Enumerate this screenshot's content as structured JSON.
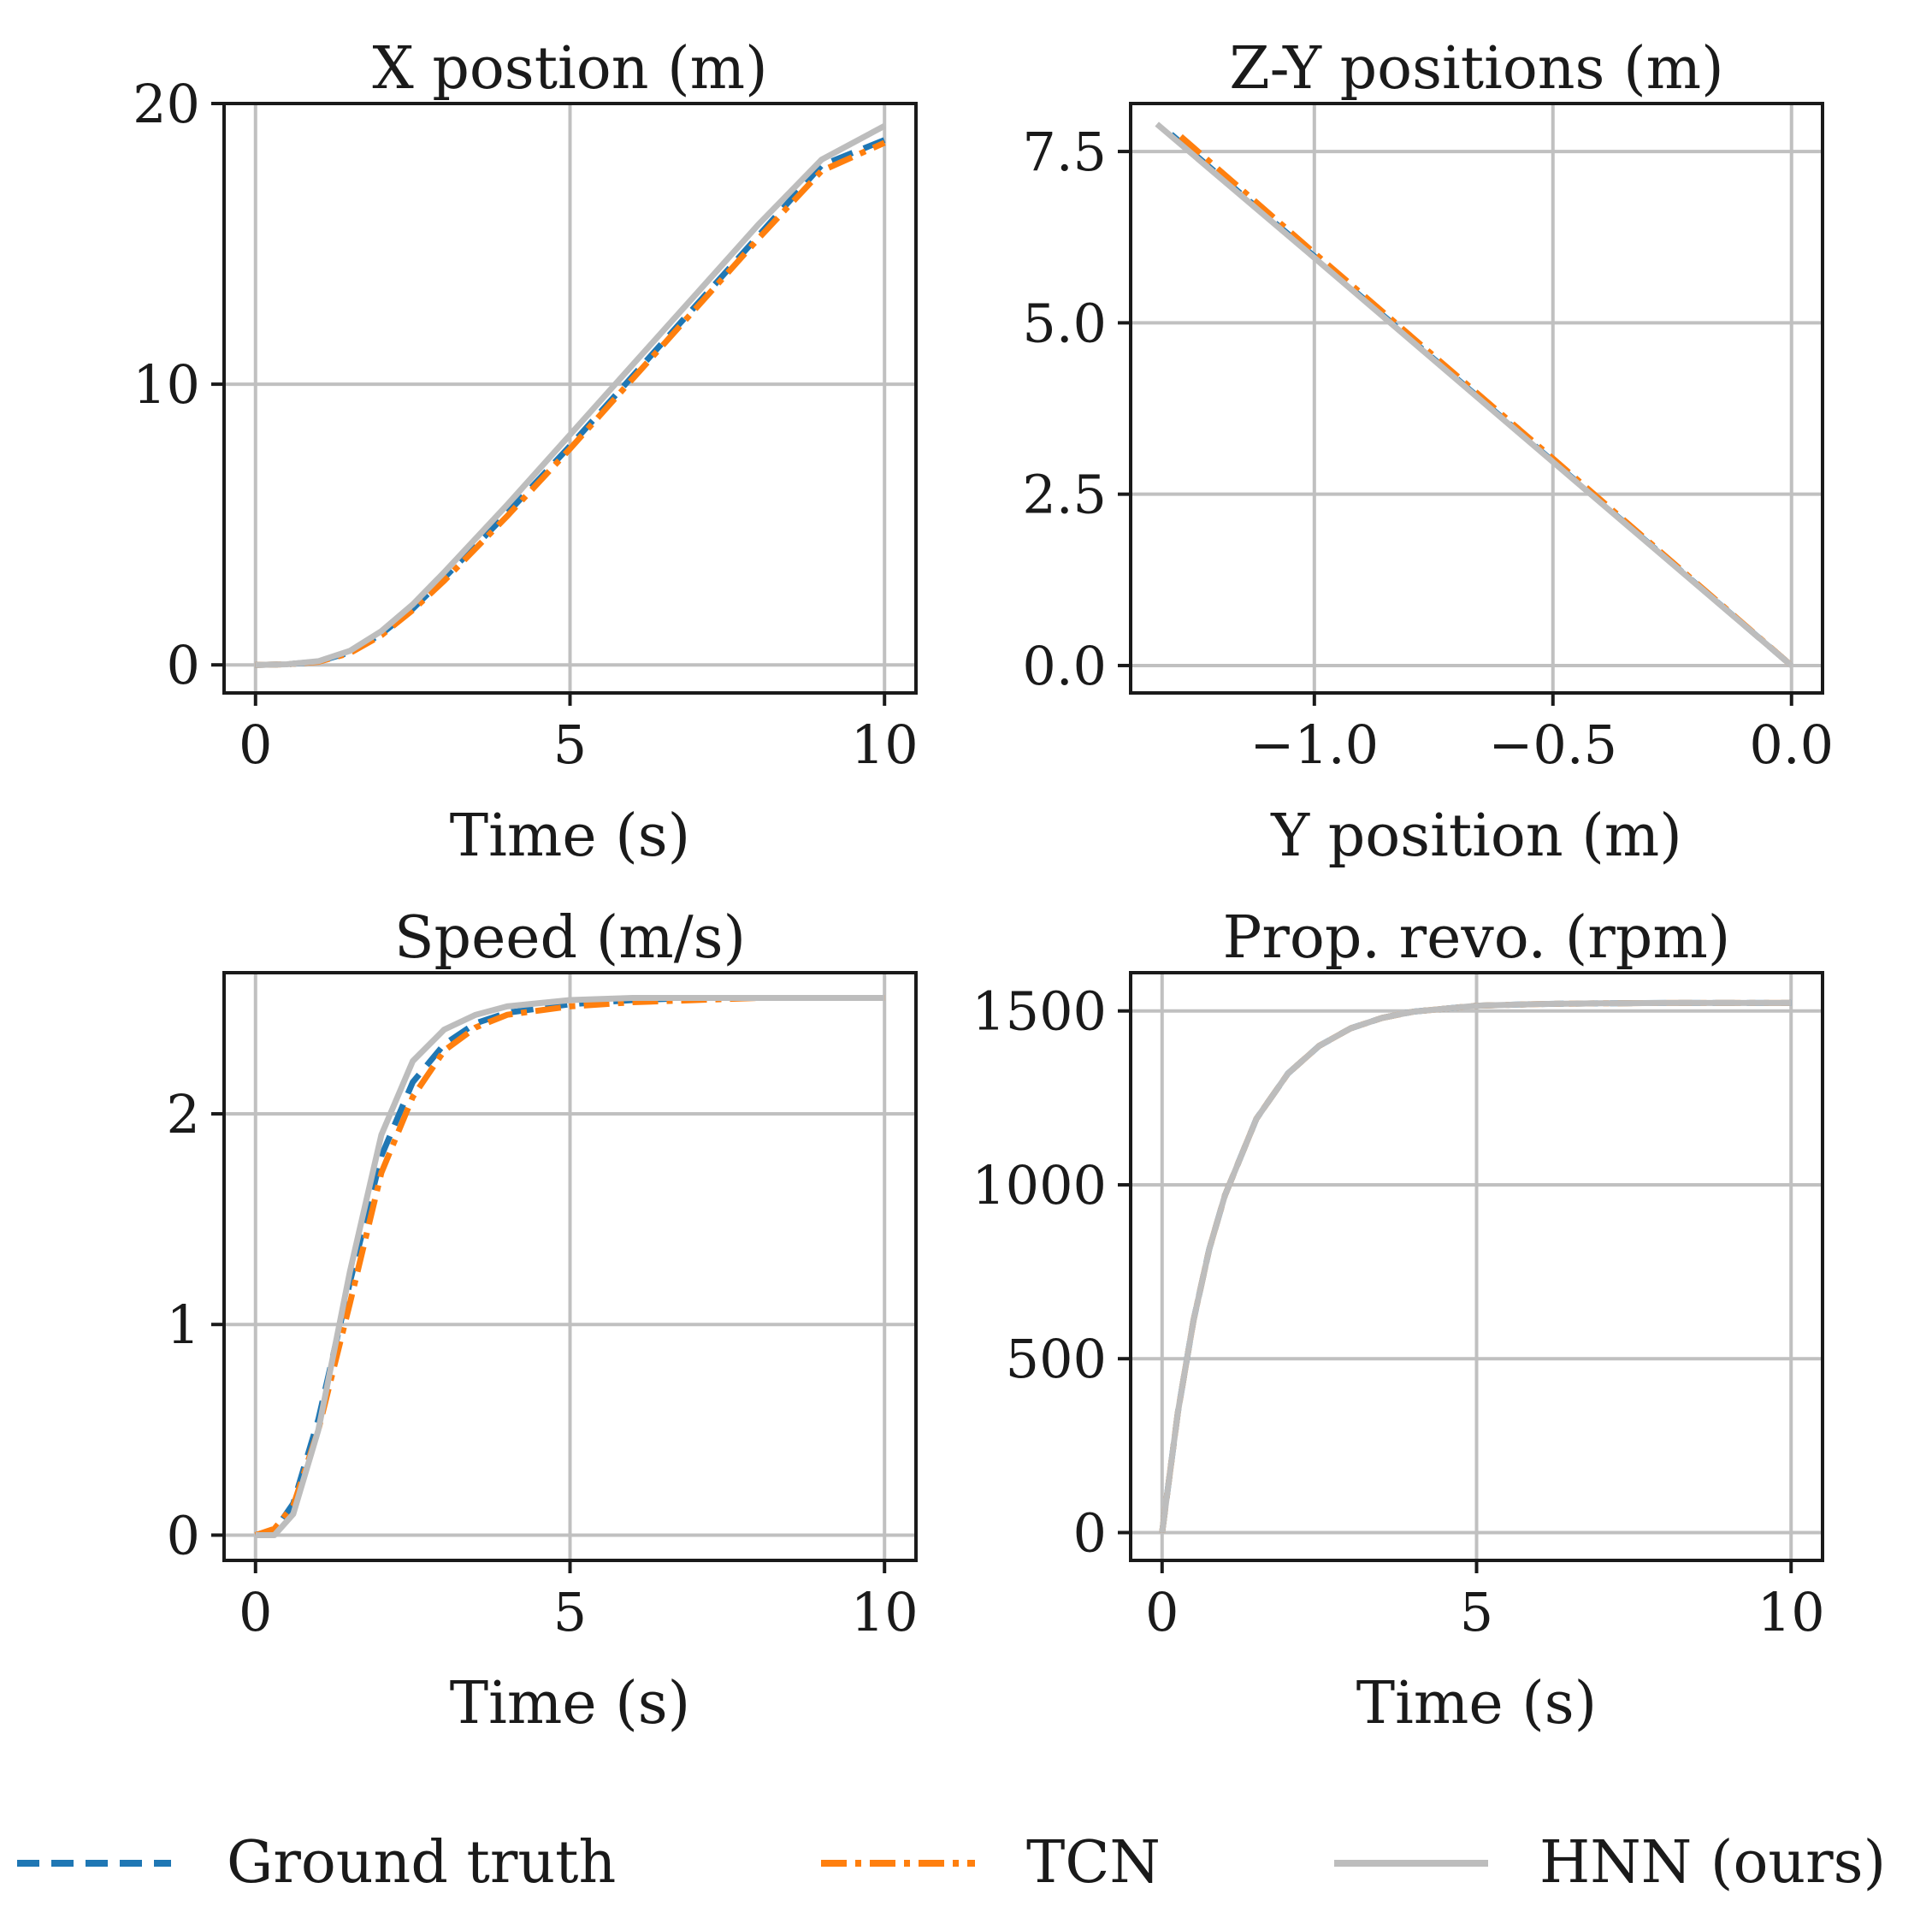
{
  "colors": {
    "ground_truth": "#1f77b4",
    "tcn": "#ff7f0e",
    "hnn": "#bdbdbd",
    "grid": "#c0c0c0",
    "axis": "#1a1a1a"
  },
  "legend": {
    "entries": [
      {
        "key": "ground_truth",
        "label": "Ground truth",
        "style": "dashed"
      },
      {
        "key": "tcn",
        "label": "TCN",
        "style": "dashdot"
      },
      {
        "key": "hnn",
        "label": "HNN (ours)",
        "style": "solid"
      }
    ]
  },
  "chart_data": [
    {
      "type": "line",
      "title": "X postion (m)",
      "xlabel": "Time (s)",
      "ylabel": "",
      "xlim": [
        -0.5,
        10.5
      ],
      "ylim": [
        -1,
        20
      ],
      "xticks": [
        0,
        5,
        10
      ],
      "xtick_labels": [
        "0",
        "5",
        "10"
      ],
      "yticks": [
        0,
        10,
        20
      ],
      "ytick_labels": [
        "0",
        "10",
        "20"
      ],
      "grid": true,
      "series": [
        {
          "name": "Ground truth",
          "key": "ground_truth",
          "x": [
            0,
            0.5,
            1,
            1.5,
            2,
            2.5,
            3,
            4,
            5,
            6,
            7,
            8,
            9,
            10
          ],
          "y": [
            0,
            0.02,
            0.12,
            0.45,
            1.1,
            2.0,
            3.1,
            5.4,
            7.8,
            10.3,
            12.8,
            15.3,
            17.8,
            18.7
          ]
        },
        {
          "name": "TCN",
          "key": "tcn",
          "x": [
            0,
            0.5,
            1,
            1.5,
            2,
            2.5,
            3,
            4,
            5,
            6,
            7,
            8,
            9,
            10
          ],
          "y": [
            0,
            0.02,
            0.11,
            0.42,
            1.05,
            1.95,
            3.0,
            5.3,
            7.7,
            10.2,
            12.7,
            15.2,
            17.6,
            18.6
          ]
        },
        {
          "name": "HNN (ours)",
          "key": "hnn",
          "x": [
            0,
            0.5,
            1,
            1.5,
            2,
            2.5,
            3,
            4,
            5,
            6,
            7,
            8,
            9,
            10
          ],
          "y": [
            0,
            0.02,
            0.13,
            0.5,
            1.2,
            2.15,
            3.3,
            5.7,
            8.2,
            10.7,
            13.2,
            15.7,
            18.0,
            19.2
          ]
        }
      ]
    },
    {
      "type": "line",
      "title": "Z-Y positions (m)",
      "xlabel": "Y position (m)",
      "ylabel": "",
      "xlim": [
        -1.385,
        0.065
      ],
      "ylim": [
        -0.4,
        8.2
      ],
      "xticks": [
        -1.0,
        -0.5,
        0.0
      ],
      "xtick_labels": [
        "−1.0",
        "−0.5",
        "0.0"
      ],
      "yticks": [
        0.0,
        2.5,
        5.0,
        7.5
      ],
      "ytick_labels": [
        "0.0",
        "2.5",
        "5.0",
        "7.5"
      ],
      "grid": true,
      "series": [
        {
          "name": "Ground truth",
          "key": "ground_truth",
          "x": [
            -1.3,
            -1.0,
            -0.5,
            0.0
          ],
          "y": [
            7.75,
            5.97,
            2.98,
            0.0
          ]
        },
        {
          "name": "TCN",
          "key": "tcn",
          "x": [
            -1.28,
            -1.0,
            -0.5,
            0.0
          ],
          "y": [
            7.72,
            6.02,
            3.02,
            0.0
          ]
        },
        {
          "name": "HNN (ours)",
          "key": "hnn",
          "x": [
            -1.33,
            -1.0,
            -0.5,
            0.0
          ],
          "y": [
            7.9,
            5.95,
            2.97,
            0.0
          ]
        }
      ]
    },
    {
      "type": "line",
      "title": "Speed (m/s)",
      "xlabel": "Time (s)",
      "ylabel": "",
      "xlim": [
        -0.5,
        10.5
      ],
      "ylim": [
        -0.12,
        2.67
      ],
      "xticks": [
        0,
        5,
        10
      ],
      "xtick_labels": [
        "0",
        "5",
        "10"
      ],
      "yticks": [
        0,
        1,
        2
      ],
      "ytick_labels": [
        "0",
        "1",
        "2"
      ],
      "grid": true,
      "series": [
        {
          "name": "Ground truth",
          "key": "ground_truth",
          "x": [
            0,
            0.3,
            0.6,
            1.0,
            1.5,
            2.0,
            2.5,
            3.0,
            3.5,
            4.0,
            5.0,
            6.0,
            7.0,
            8.0,
            10.0
          ],
          "y": [
            0,
            0.02,
            0.15,
            0.55,
            1.2,
            1.8,
            2.15,
            2.33,
            2.43,
            2.48,
            2.52,
            2.54,
            2.55,
            2.55,
            2.55
          ]
        },
        {
          "name": "TCN",
          "key": "tcn",
          "x": [
            0,
            0.3,
            0.6,
            1.0,
            1.5,
            2.0,
            2.5,
            3.0,
            3.5,
            4.0,
            5.0,
            6.0,
            7.0,
            8.0,
            10.0
          ],
          "y": [
            0,
            0.03,
            0.14,
            0.5,
            1.1,
            1.72,
            2.08,
            2.3,
            2.41,
            2.47,
            2.51,
            2.53,
            2.54,
            2.55,
            2.55
          ]
        },
        {
          "name": "HNN (ours)",
          "key": "hnn",
          "x": [
            0,
            0.3,
            0.6,
            1.0,
            1.5,
            2.0,
            2.5,
            3.0,
            3.5,
            4.0,
            5.0,
            6.0,
            7.0,
            8.0,
            10.0
          ],
          "y": [
            0,
            0.0,
            0.1,
            0.5,
            1.25,
            1.9,
            2.25,
            2.4,
            2.47,
            2.51,
            2.54,
            2.55,
            2.55,
            2.55,
            2.55
          ]
        }
      ]
    },
    {
      "type": "line",
      "title": "Prop. revo. (rpm)",
      "xlabel": "Time (s)",
      "ylabel": "",
      "xlim": [
        -0.5,
        10.5
      ],
      "ylim": [
        -80,
        1610
      ],
      "xticks": [
        0,
        5,
        10
      ],
      "xtick_labels": [
        "0",
        "5",
        "10"
      ],
      "yticks": [
        0,
        500,
        1000,
        1500
      ],
      "ytick_labels": [
        "0",
        "500",
        "1000",
        "1500"
      ],
      "grid": true,
      "series": [
        {
          "name": "Ground truth",
          "key": "ground_truth",
          "x": [
            0,
            0.25,
            0.5,
            0.75,
            1.0,
            1.5,
            2.0,
            2.5,
            3.0,
            3.5,
            4.0,
            5.0,
            6.0,
            7.0,
            8.0,
            10.0
          ],
          "y": [
            0,
            345,
            610,
            815,
            970,
            1190,
            1320,
            1400,
            1450,
            1480,
            1498,
            1515,
            1520,
            1522,
            1523,
            1523
          ]
        },
        {
          "name": "TCN",
          "key": "tcn",
          "x": [
            0,
            0.25,
            0.5,
            0.75,
            1.0,
            1.5,
            2.0,
            2.5,
            3.0,
            3.5,
            4.0,
            5.0,
            6.0,
            7.0,
            8.0,
            10.0
          ],
          "y": [
            0,
            345,
            610,
            815,
            970,
            1190,
            1320,
            1400,
            1450,
            1480,
            1498,
            1515,
            1520,
            1522,
            1523,
            1523
          ]
        },
        {
          "name": "HNN (ours)",
          "key": "hnn",
          "x": [
            0,
            0.25,
            0.5,
            0.75,
            1.0,
            1.5,
            2.0,
            2.5,
            3.0,
            3.5,
            4.0,
            5.0,
            6.0,
            7.0,
            8.0,
            10.0
          ],
          "y": [
            0,
            345,
            610,
            815,
            970,
            1190,
            1320,
            1400,
            1450,
            1480,
            1498,
            1515,
            1520,
            1522,
            1523,
            1523
          ]
        }
      ]
    }
  ]
}
